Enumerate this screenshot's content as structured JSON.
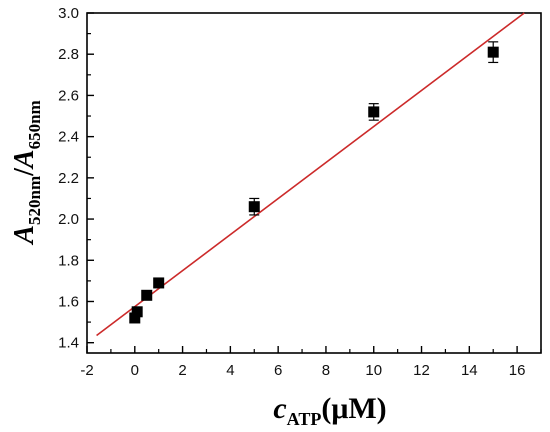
{
  "chart_data": {
    "type": "scatter",
    "title": "",
    "xlabel": {
      "main": "c",
      "sub": "ATP",
      "unit": "(μM)"
    },
    "ylabel": {
      "a1": "A",
      "sub1": "520nm",
      "slash": "/",
      "a2": "A",
      "sub2": "650nm"
    },
    "xlim": [
      -2,
      17
    ],
    "ylim": [
      1.35,
      3.0
    ],
    "xticks": [
      -2,
      0,
      2,
      4,
      6,
      8,
      10,
      12,
      14,
      16
    ],
    "yticks": [
      1.4,
      1.6,
      1.8,
      2.0,
      2.2,
      2.4,
      2.6,
      2.8,
      3.0
    ],
    "xtick_labels": [
      "-2",
      "0",
      "2",
      "4",
      "6",
      "8",
      "10",
      "12",
      "14",
      "16"
    ],
    "ytick_labels": [
      "1.4",
      "1.6",
      "1.8",
      "2.0",
      "2.2",
      "2.4",
      "2.6",
      "2.8",
      "3.0"
    ],
    "grid": false,
    "legend": "none",
    "points": [
      {
        "x": 0.0,
        "y": 1.52,
        "err": 0.02
      },
      {
        "x": 0.1,
        "y": 1.55,
        "err": 0.02
      },
      {
        "x": 0.5,
        "y": 1.63,
        "err": 0.02
      },
      {
        "x": 1.0,
        "y": 1.69,
        "err": 0.02
      },
      {
        "x": 5.0,
        "y": 2.06,
        "err": 0.04
      },
      {
        "x": 10.0,
        "y": 2.52,
        "err": 0.04
      },
      {
        "x": 15.0,
        "y": 2.81,
        "err": 0.05
      }
    ],
    "fit_line": {
      "x": [
        -1.6,
        16.3
      ],
      "y": [
        1.435,
        3.0
      ],
      "color": "#cc2a2a"
    },
    "marker_color": "#000000"
  }
}
